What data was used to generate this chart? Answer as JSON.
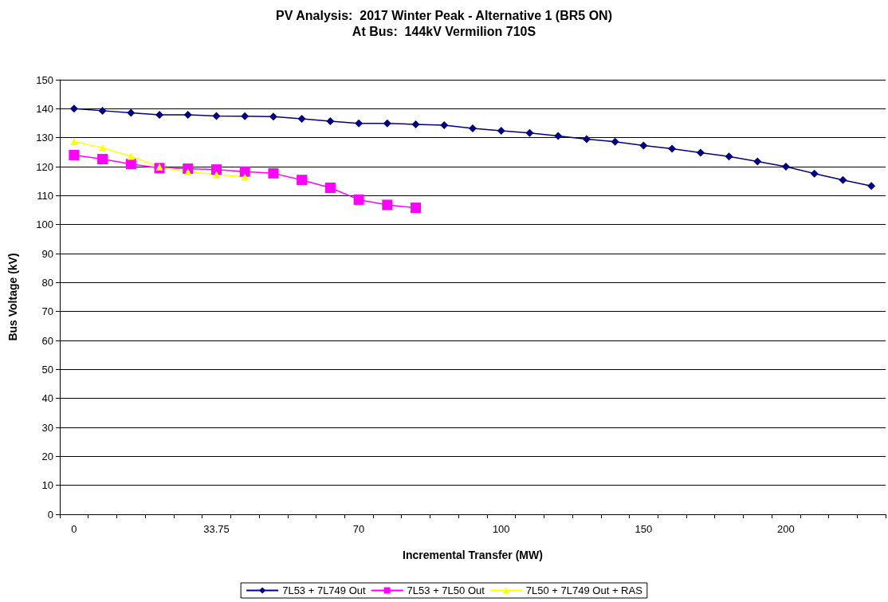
{
  "chart_data": {
    "type": "line",
    "title": "PV Analysis:  2017 Winter Peak - Alternative 1 (BR5 ON)",
    "subtitle": "At Bus:  144kV Vermilion 710S",
    "xlabel": "Incremental Transfer (MW)",
    "ylabel": "Bus Voltage (kV)",
    "categories": [
      "0",
      null,
      null,
      null,
      null,
      "33.75",
      null,
      null,
      null,
      null,
      "70",
      null,
      null,
      null,
      null,
      "100",
      null,
      null,
      null,
      null,
      "150",
      null,
      null,
      null,
      null,
      "200",
      null,
      null,
      null
    ],
    "series": [
      {
        "name": "7L53 + 7L749 Out",
        "color": "#000080",
        "marker": "diamond",
        "values": [
          140.0,
          139.3,
          138.6,
          137.9,
          137.9,
          137.5,
          137.4,
          137.3,
          136.5,
          135.7,
          134.9,
          134.9,
          134.6,
          134.3,
          133.2,
          132.4,
          131.6,
          130.6,
          129.5,
          128.6,
          127.3,
          126.2,
          124.8,
          123.5,
          121.8,
          120.0,
          117.6,
          115.4,
          113.3
        ]
      },
      {
        "name": "7L53 + 7L50 Out",
        "color": "#ff00ff",
        "marker": "square",
        "values": [
          124.0,
          122.6,
          120.9,
          119.5,
          119.3,
          119.0,
          118.3,
          117.7,
          115.4,
          112.7,
          108.6,
          106.8,
          105.8,
          null,
          null,
          null,
          null,
          null,
          null,
          null,
          null,
          null,
          null,
          null,
          null,
          null,
          null,
          null,
          null
        ]
      },
      {
        "name": "7L50 + 7L749 Out + RAS",
        "color": "#ffff00",
        "marker": "triangle",
        "values": [
          128.7,
          126.5,
          123.6,
          119.9,
          118.2,
          117.3,
          116.4,
          null,
          null,
          null,
          null,
          null,
          null,
          null,
          null,
          null,
          null,
          null,
          null,
          null,
          null,
          null,
          null,
          null,
          null,
          null,
          null,
          null,
          null
        ]
      }
    ],
    "ylim": [
      0,
      150
    ],
    "yticks": [
      0,
      10,
      20,
      30,
      40,
      50,
      60,
      70,
      80,
      90,
      100,
      110,
      120,
      130,
      140,
      150
    ],
    "grid": "y",
    "legend": "bottom",
    "line_style": "solid"
  }
}
